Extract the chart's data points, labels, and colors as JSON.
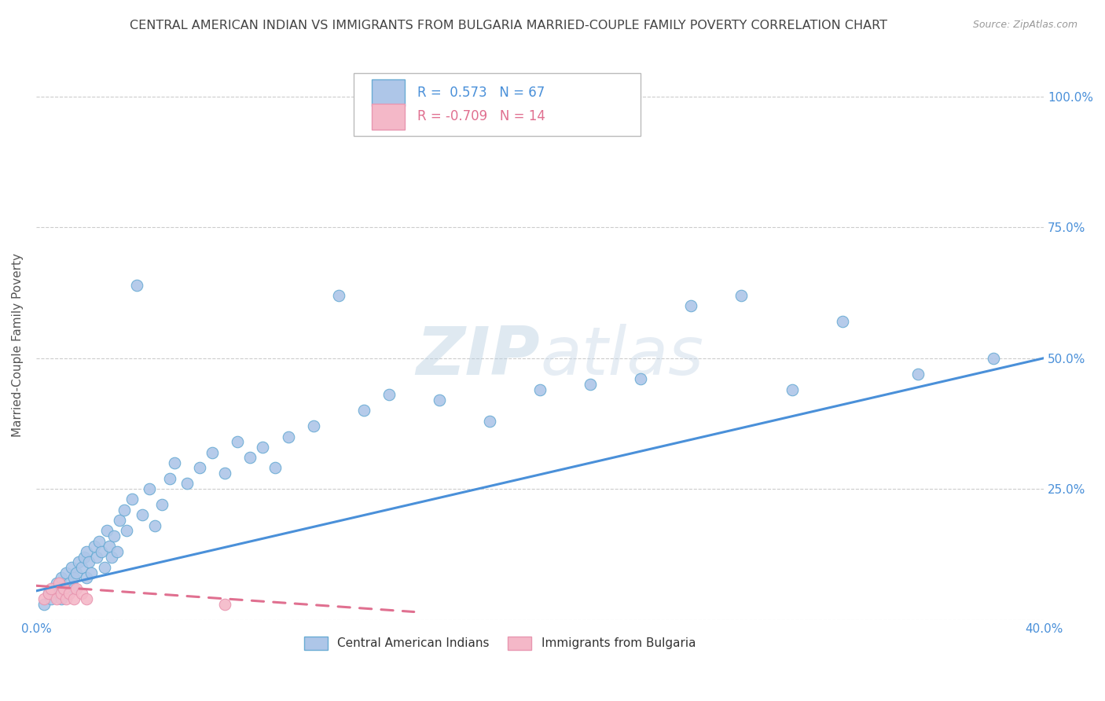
{
  "title": "CENTRAL AMERICAN INDIAN VS IMMIGRANTS FROM BULGARIA MARRIED-COUPLE FAMILY POVERTY CORRELATION CHART",
  "source": "Source: ZipAtlas.com",
  "ylabel": "Married-Couple Family Poverty",
  "xmin": 0.0,
  "xmax": 0.4,
  "ymin": 0.0,
  "ymax": 1.05,
  "xticks": [
    0.0,
    0.1,
    0.2,
    0.3,
    0.4
  ],
  "xticklabels": [
    "0.0%",
    "",
    "",
    "",
    "40.0%"
  ],
  "ytick_positions": [
    0.0,
    0.25,
    0.5,
    0.75,
    1.0
  ],
  "yticklabels_right": [
    "",
    "25.0%",
    "50.0%",
    "75.0%",
    "100.0%"
  ],
  "R_blue": 0.573,
  "N_blue": 67,
  "R_pink": -0.709,
  "N_pink": 14,
  "legend_label_blue": "Central American Indians",
  "legend_label_pink": "Immigrants from Bulgaria",
  "blue_color": "#aec6e8",
  "blue_edge_color": "#6aacd4",
  "blue_line_color": "#4a90d9",
  "pink_color": "#f4b8c8",
  "pink_edge_color": "#e896b0",
  "pink_line_color": "#e07090",
  "watermark_color": "#ccd8e8",
  "blue_scatter_x": [
    0.003,
    0.005,
    0.006,
    0.007,
    0.008,
    0.009,
    0.01,
    0.01,
    0.011,
    0.012,
    0.013,
    0.014,
    0.015,
    0.015,
    0.016,
    0.017,
    0.018,
    0.019,
    0.02,
    0.02,
    0.021,
    0.022,
    0.023,
    0.024,
    0.025,
    0.026,
    0.027,
    0.028,
    0.029,
    0.03,
    0.031,
    0.032,
    0.033,
    0.035,
    0.036,
    0.038,
    0.04,
    0.042,
    0.045,
    0.047,
    0.05,
    0.053,
    0.055,
    0.06,
    0.065,
    0.07,
    0.075,
    0.08,
    0.085,
    0.09,
    0.095,
    0.1,
    0.11,
    0.12,
    0.13,
    0.14,
    0.16,
    0.18,
    0.2,
    0.22,
    0.24,
    0.26,
    0.28,
    0.3,
    0.32,
    0.35,
    0.38
  ],
  "blue_scatter_y": [
    0.03,
    0.05,
    0.04,
    0.06,
    0.07,
    0.05,
    0.08,
    0.04,
    0.06,
    0.09,
    0.07,
    0.1,
    0.06,
    0.08,
    0.09,
    0.11,
    0.1,
    0.12,
    0.08,
    0.13,
    0.11,
    0.09,
    0.14,
    0.12,
    0.15,
    0.13,
    0.1,
    0.17,
    0.14,
    0.12,
    0.16,
    0.13,
    0.19,
    0.21,
    0.17,
    0.23,
    0.64,
    0.2,
    0.25,
    0.18,
    0.22,
    0.27,
    0.3,
    0.26,
    0.29,
    0.32,
    0.28,
    0.34,
    0.31,
    0.33,
    0.29,
    0.35,
    0.37,
    0.62,
    0.4,
    0.43,
    0.42,
    0.38,
    0.44,
    0.45,
    0.46,
    0.6,
    0.62,
    0.44,
    0.57,
    0.47,
    0.5
  ],
  "pink_scatter_x": [
    0.003,
    0.005,
    0.006,
    0.008,
    0.009,
    0.01,
    0.011,
    0.012,
    0.013,
    0.015,
    0.016,
    0.018,
    0.02,
    0.075
  ],
  "pink_scatter_y": [
    0.04,
    0.05,
    0.06,
    0.04,
    0.07,
    0.05,
    0.06,
    0.04,
    0.05,
    0.04,
    0.06,
    0.05,
    0.04,
    0.03
  ],
  "blue_line_x": [
    0.0,
    0.4
  ],
  "blue_line_y": [
    0.055,
    0.5
  ],
  "pink_line_x": [
    0.0,
    0.15
  ],
  "pink_line_y": [
    0.065,
    0.015
  ],
  "background_color": "#ffffff",
  "grid_color": "#cccccc",
  "title_color": "#444444",
  "axis_color": "#4a90d9",
  "right_label_color": "#4a90d9"
}
